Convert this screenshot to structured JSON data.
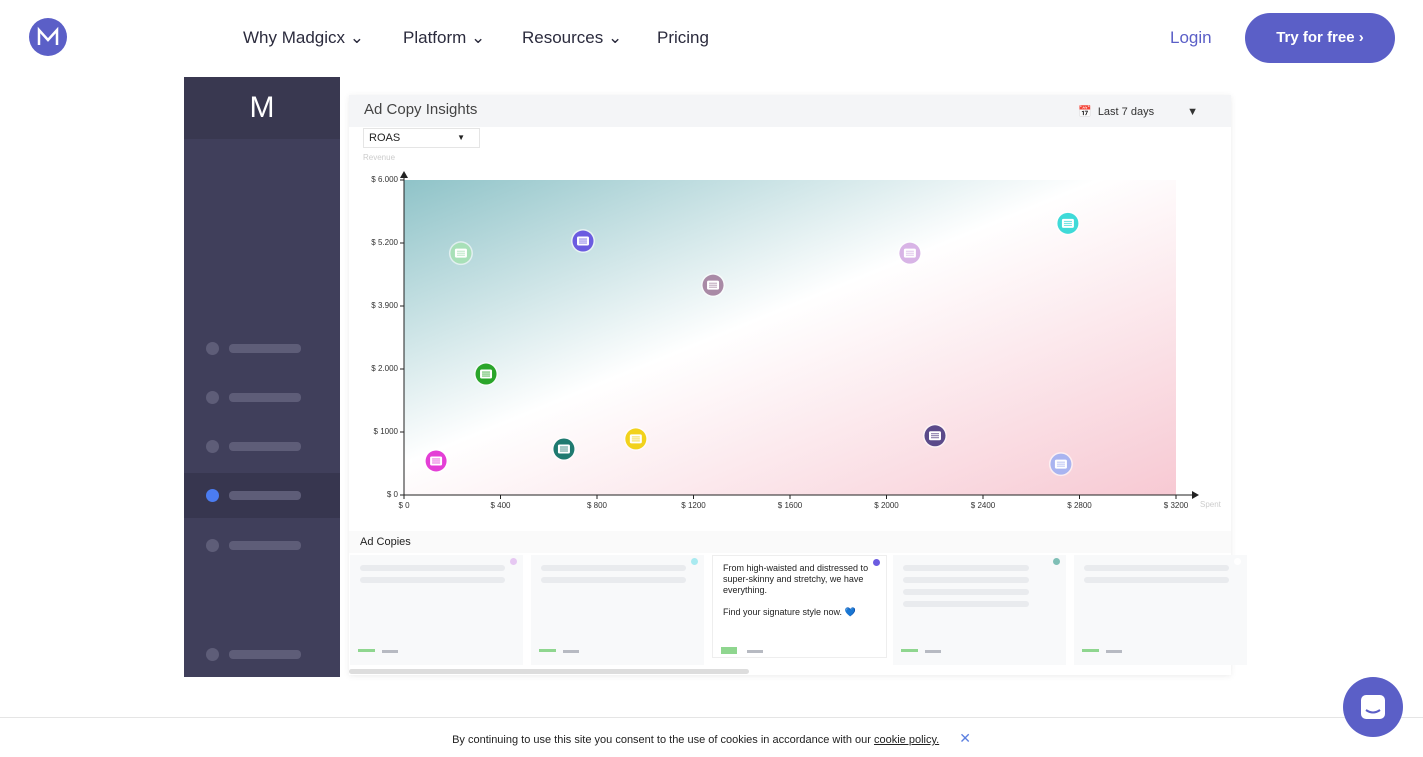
{
  "nav": {
    "items": [
      "Why Madgicx",
      "Platform",
      "Resources",
      "Pricing"
    ],
    "login": "Login",
    "cta": "Try for free"
  },
  "app": {
    "title": "Ad Copy Insights",
    "metric": "ROAS",
    "period": "Last 7 days",
    "section": "Ad Copies",
    "card_text": "From high-waisted and distressed to super-skinny and stretchy, we have everything.",
    "card_text2": "Find your signature style now. 💙"
  },
  "cookie": {
    "text": "By continuing to use this site you consent to the use of cookies in accordance with our",
    "link": "cookie policy."
  },
  "chart_data": {
    "type": "scatter",
    "y_label": "Revenue",
    "x_label": "Spent",
    "x": [
      133,
      236,
      742,
      340,
      663,
      961,
      1281,
      2097,
      2752,
      2201,
      2723
    ],
    "values": [
      540,
      4990,
      5225,
      1920,
      730,
      890,
      4330,
      4990,
      5450,
      940,
      490
    ],
    "colors": [
      "#e43fd6",
      "#a8e0b8",
      "#6b5ce0",
      "#2aa52a",
      "#1f7a70",
      "#f2d21c",
      "#a98aa6",
      "#d8b4e6",
      "#3fdad8",
      "#5b4a8a",
      "#a9b4f0"
    ],
    "xlim": [
      0,
      3200
    ],
    "xticks": [
      {
        "value": 0,
        "label": "$ 0"
      },
      {
        "value": 400,
        "label": "$ 400"
      },
      {
        "value": 800,
        "label": "$ 800"
      },
      {
        "value": 1200,
        "label": "$ 1200"
      },
      {
        "value": 1600,
        "label": "$ 1600"
      },
      {
        "value": 2000,
        "label": "$ 2000"
      },
      {
        "value": 2400,
        "label": "$ 2400"
      },
      {
        "value": 2800,
        "label": "$ 2800"
      },
      {
        "value": 3200,
        "label": "$ 3200"
      }
    ],
    "ylim": [
      0,
      6000
    ],
    "yticks": [
      {
        "value": 0,
        "label": "$ 0"
      },
      {
        "value": 1000,
        "label": "$ 1000"
      },
      {
        "value": 2000,
        "label": "$ 2.000"
      },
      {
        "value": 3900,
        "label": "$ 3.900"
      },
      {
        "value": 5200,
        "label": "$ 5.200"
      },
      {
        "value": 6000,
        "label": "$ 6.000"
      }
    ]
  }
}
